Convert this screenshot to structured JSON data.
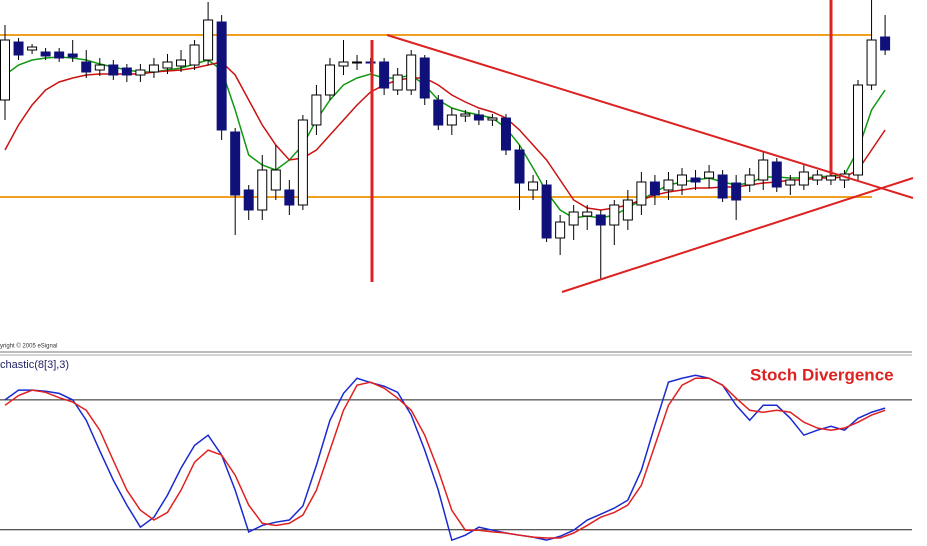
{
  "chart_data": [
    {
      "type": "candlestick",
      "annotations": [
        "yright © 2005 eSignal"
      ],
      "ylim": [
        0,
        340
      ],
      "up_color": "#ffffff",
      "down_color": "#10107a",
      "outline_color": "#000000",
      "open": [
        240,
        298,
        290,
        288,
        288,
        286,
        278,
        270,
        275,
        272,
        265,
        268,
        272,
        274,
        275,
        280,
        318,
        208,
        150,
        130,
        150,
        150,
        135,
        215,
        245,
        274,
        277,
        278,
        278,
        250,
        250,
        282,
        240,
        215,
        224,
        225,
        220,
        222,
        190,
        150,
        155,
        102,
        115,
        124,
        125,
        115,
        120,
        135,
        158,
        150,
        155,
        162,
        162,
        165,
        157,
        155,
        160,
        178,
        155,
        155,
        160,
        160,
        160,
        165,
        255,
        303
      ],
      "high": [
        315,
        302,
        296,
        292,
        292,
        300,
        290,
        282,
        280,
        276,
        276,
        282,
        286,
        290,
        300,
        338,
        325,
        212,
        155,
        185,
        195,
        160,
        225,
        255,
        282,
        300,
        285,
        282,
        282,
        272,
        290,
        285,
        245,
        232,
        230,
        230,
        226,
        226,
        195,
        165,
        160,
        125,
        135,
        135,
        130,
        140,
        150,
        168,
        165,
        168,
        172,
        170,
        175,
        170,
        165,
        172,
        188,
        182,
        165,
        175,
        170,
        170,
        170,
        260,
        340,
        325
      ],
      "low": [
        220,
        280,
        286,
        280,
        278,
        278,
        262,
        264,
        260,
        258,
        258,
        262,
        266,
        268,
        270,
        275,
        200,
        105,
        120,
        120,
        140,
        125,
        130,
        205,
        240,
        265,
        270,
        268,
        245,
        245,
        245,
        235,
        210,
        205,
        218,
        215,
        214,
        185,
        130,
        140,
        98,
        85,
        100,
        110,
        60,
        95,
        110,
        125,
        135,
        140,
        145,
        150,
        152,
        138,
        120,
        148,
        150,
        148,
        145,
        150,
        155,
        155,
        152,
        160,
        250,
        285
      ],
      "close": [
        300,
        285,
        293,
        284,
        282,
        283,
        268,
        275,
        265,
        265,
        270,
        275,
        278,
        280,
        295,
        320,
        210,
        145,
        130,
        170,
        170,
        135,
        220,
        245,
        275,
        278,
        278,
        277,
        252,
        265,
        285,
        242,
        215,
        225,
        226,
        220,
        222,
        190,
        157,
        158,
        102,
        118,
        128,
        128,
        115,
        135,
        140,
        158,
        145,
        160,
        165,
        158,
        168,
        142,
        140,
        165,
        180,
        153,
        160,
        168,
        165,
        164,
        166,
        255,
        300,
        290
      ],
      "series": [
        {
          "color": "#119911",
          "values": [
            265,
            275,
            280,
            282,
            283,
            282,
            280,
            276,
            273,
            270,
            268,
            268,
            270,
            272,
            276,
            280,
            270,
            230,
            185,
            175,
            170,
            180,
            195,
            220,
            240,
            255,
            262,
            266,
            262,
            262,
            265,
            255,
            240,
            232,
            228,
            225,
            222,
            212,
            195,
            172,
            148,
            130,
            122,
            124,
            122,
            125,
            132,
            140,
            148,
            155,
            158,
            160,
            162,
            158,
            155,
            157,
            163,
            163,
            162,
            162,
            163,
            164,
            165,
            190,
            230,
            250
          ]
        },
        {
          "color": "#cc1111",
          "values": [
            190,
            215,
            235,
            250,
            258,
            262,
            265,
            266,
            266,
            266,
            266,
            268,
            269,
            270,
            272,
            275,
            278,
            265,
            240,
            215,
            195,
            180,
            182,
            190,
            205,
            220,
            235,
            248,
            255,
            260,
            262,
            262,
            255,
            245,
            238,
            232,
            228,
            222,
            210,
            195,
            180,
            160,
            140,
            132,
            130,
            132,
            135,
            140,
            145,
            148,
            150,
            152,
            152,
            153,
            153,
            155,
            157,
            158,
            160,
            160,
            162,
            162,
            163,
            170,
            190,
            210
          ]
        }
      ]
    },
    {
      "type": "line",
      "title": "chastic(8[3],3)",
      "annotations": [
        "Stoch Divergence"
      ],
      "ylim": [
        12.5,
        100
      ],
      "levels": [
        80,
        20
      ],
      "series": [
        {
          "color": "#1a2ad0",
          "values": [
            80,
            84.5,
            84.5,
            84,
            83,
            80,
            70.6,
            56.5,
            42.9,
            31.4,
            21.2,
            25.8,
            36,
            48.5,
            59,
            63.7,
            54.5,
            38.3,
            19,
            22,
            23.5,
            24.5,
            31,
            49.8,
            70.6,
            83,
            90,
            88,
            86.3,
            83.5,
            73,
            56.8,
            38.3,
            15.2,
            17.5,
            21.2,
            19.8,
            18.5,
            17.5,
            16.6,
            15.2,
            17,
            19.8,
            24.5,
            27.2,
            30,
            33.7,
            47.5,
            68.3,
            88.2,
            90,
            91.4,
            90,
            86.8,
            77.5,
            70.6,
            77.5,
            77.5,
            71.5,
            63.7,
            66,
            67.8,
            66,
            71.5,
            74.3,
            76.2
          ]
        },
        {
          "color": "#e02020",
          "values": [
            77.5,
            82,
            84.5,
            83.5,
            81,
            79,
            75.2,
            66,
            52,
            38.3,
            29,
            24.5,
            28,
            38.3,
            51.2,
            56.8,
            54.5,
            45.2,
            31.4,
            23,
            22,
            23,
            26.8,
            38.3,
            56.8,
            75.2,
            86.8,
            88.2,
            85.4,
            80.8,
            75.2,
            63.7,
            47.5,
            29,
            19.8,
            19.8,
            19,
            18.5,
            17.5,
            16.6,
            16.2,
            16.2,
            18.5,
            22,
            25.8,
            28,
            31.4,
            40.6,
            59,
            77.5,
            86.8,
            90,
            90,
            86.8,
            80.8,
            75.2,
            74.3,
            75.2,
            74.3,
            69.7,
            67,
            66,
            67,
            69.7,
            73,
            75.2
          ]
        }
      ]
    }
  ]
}
